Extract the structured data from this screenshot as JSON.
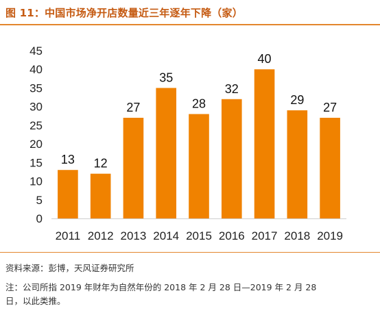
{
  "header": {
    "title": "图 11：中国市场净开店数量近三年逐年下降（家）"
  },
  "chart_data": {
    "type": "bar",
    "categories": [
      "2011",
      "2012",
      "2013",
      "2014",
      "2015",
      "2016",
      "2017",
      "2018",
      "2019"
    ],
    "values": [
      13,
      12,
      27,
      35,
      28,
      32,
      40,
      29,
      27
    ],
    "ylim": [
      0,
      45
    ],
    "yticks": [
      0,
      5,
      10,
      15,
      20,
      25,
      30,
      35,
      40,
      45
    ],
    "grid": false,
    "data_labels": true,
    "bar_color": "#f08200"
  },
  "footer": {
    "source": "资料来源：彭博，天风证券研究所",
    "note_line1": "注：公司所指 2019 年财年为自然年份的 2018 年 2 月 28 日—2019 年 2 月 28",
    "note_line2": "日，以此类推。"
  }
}
